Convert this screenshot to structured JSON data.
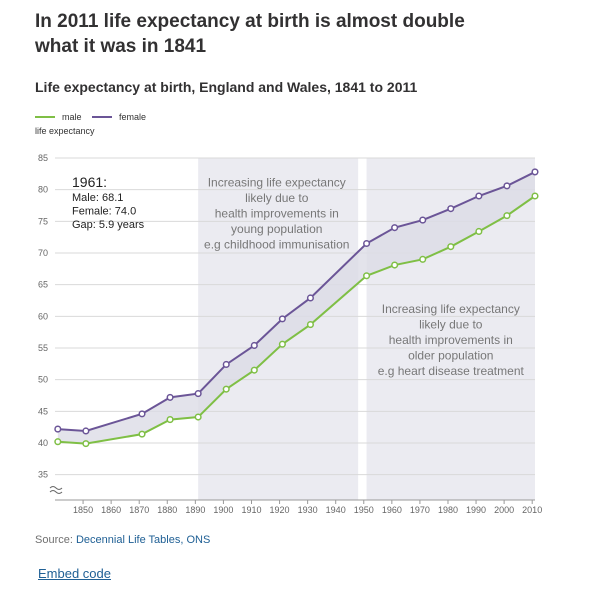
{
  "title": "In 2011 life expectancy at birth is almost double what it was in 1841",
  "chart_data": {
    "type": "line",
    "title": "Life expectancy at birth, England and Wales, 1841 to 2011",
    "y_label": "life expectancy",
    "x": [
      1841,
      1851,
      1871,
      1881,
      1891,
      1901,
      1911,
      1921,
      1931,
      1951,
      1961,
      1971,
      1981,
      1991,
      2001,
      2011
    ],
    "series": [
      {
        "name": "male",
        "color": "#7fbf45",
        "values": [
          40.2,
          39.9,
          41.4,
          43.7,
          44.1,
          48.5,
          51.5,
          55.6,
          58.7,
          66.4,
          68.1,
          69.0,
          71.0,
          73.4,
          75.9,
          79.0
        ]
      },
      {
        "name": "female",
        "color": "#6b5597",
        "values": [
          42.2,
          41.9,
          44.6,
          47.2,
          47.8,
          52.4,
          55.4,
          59.6,
          62.9,
          71.5,
          74.0,
          75.2,
          77.0,
          79.0,
          80.6,
          82.8
        ]
      }
    ],
    "xlim": [
      1840,
      2011
    ],
    "xticks": [
      1850,
      1860,
      1870,
      1880,
      1890,
      1900,
      1910,
      1920,
      1930,
      1940,
      1950,
      1960,
      1970,
      1980,
      1990,
      2000,
      2010
    ],
    "ylim": [
      31,
      85
    ],
    "yticks": [
      35,
      40,
      45,
      50,
      55,
      60,
      65,
      70,
      75,
      80,
      85
    ],
    "grid": true,
    "shaded": [
      [
        1891,
        1948
      ],
      [
        1951,
        2011
      ]
    ],
    "annotations": [
      {
        "x": 1919,
        "y": 80.5,
        "lines": [
          "Increasing life expectancy",
          "likely due to",
          "health improvements in",
          "young population",
          "e.g childhood immunisation"
        ]
      },
      {
        "x": 1981,
        "y": 60.5,
        "lines": [
          "Increasing life expectancy",
          "likely due to",
          "health improvements in",
          "older population",
          "e.g heart disease treatment"
        ]
      }
    ],
    "callout": [
      "1961:",
      "Male: 68.1",
      "Female: 74.0",
      "Gap: 5.9 years"
    ]
  },
  "source_label": "Source:",
  "source": "Decennial Life Tables, ONS",
  "embed": "Embed code"
}
